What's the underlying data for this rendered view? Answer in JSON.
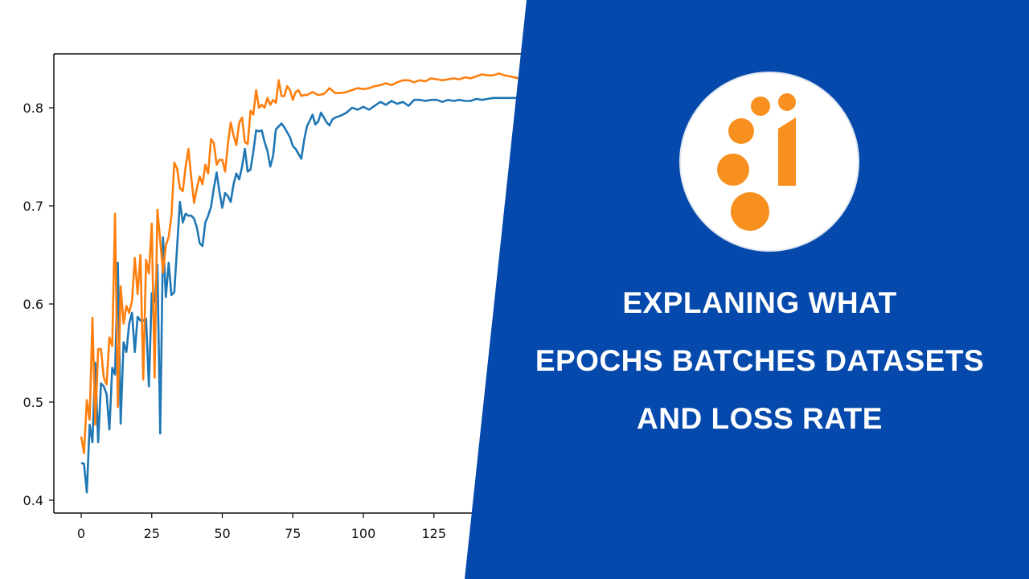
{
  "chart_data": {
    "type": "line",
    "title": "",
    "xlabel": "",
    "ylabel": "",
    "xlim": [
      -9,
      165
    ],
    "ylim": [
      0.388,
      0.855
    ],
    "grid": false,
    "legend": null,
    "x_ticks": [
      0,
      25,
      50,
      75,
      100,
      125
    ],
    "y_ticks": [
      0.4,
      0.5,
      0.6,
      0.7,
      0.8
    ],
    "x_tick_labels": [
      "0",
      "25",
      "50",
      "75",
      "100",
      "125"
    ],
    "y_tick_labels": [
      "0.4",
      "0.5",
      "0.6",
      "0.7",
      "0.8"
    ],
    "series": [
      {
        "name": "blue series",
        "color": "#1f77b4",
        "x": [
          0,
          1,
          2,
          3,
          4,
          5,
          6,
          7,
          8,
          9,
          10,
          11,
          12,
          13,
          14,
          15,
          16,
          17,
          18,
          19,
          20,
          21,
          22,
          23,
          24,
          25,
          26,
          27,
          28,
          29,
          30,
          31,
          32,
          33,
          34,
          35,
          36,
          37,
          38,
          39,
          40,
          41,
          42,
          43,
          44,
          45,
          46,
          47,
          48,
          49,
          50,
          51,
          52,
          53,
          54,
          55,
          56,
          57,
          58,
          59,
          60,
          61,
          62,
          63,
          64,
          65,
          66,
          67,
          68,
          69,
          70,
          71,
          72,
          73,
          74,
          75,
          76,
          77,
          78,
          79,
          80,
          81,
          82,
          83,
          84,
          85,
          86,
          87,
          88,
          89,
          90,
          92,
          94,
          96,
          98,
          100,
          102,
          104,
          106,
          108,
          110,
          112,
          114,
          116,
          118,
          120,
          122,
          124,
          126,
          128,
          130,
          132,
          134,
          136,
          138,
          140,
          142,
          144,
          146,
          148,
          150,
          152,
          155
        ],
        "values": [
          0.438,
          0.437,
          0.408,
          0.477,
          0.459,
          0.54,
          0.459,
          0.519,
          0.516,
          0.508,
          0.472,
          0.535,
          0.528,
          0.642,
          0.478,
          0.561,
          0.551,
          0.58,
          0.591,
          0.551,
          0.587,
          0.583,
          0.583,
          0.585,
          0.516,
          0.611,
          0.602,
          0.64,
          0.468,
          0.668,
          0.607,
          0.642,
          0.609,
          0.612,
          0.658,
          0.704,
          0.683,
          0.692,
          0.69,
          0.69,
          0.687,
          0.678,
          0.662,
          0.659,
          0.683,
          0.69,
          0.699,
          0.718,
          0.734,
          0.714,
          0.698,
          0.713,
          0.71,
          0.704,
          0.722,
          0.733,
          0.727,
          0.74,
          0.758,
          0.735,
          0.737,
          0.755,
          0.777,
          0.776,
          0.777,
          0.765,
          0.756,
          0.74,
          0.751,
          0.778,
          0.781,
          0.784,
          0.78,
          0.775,
          0.77,
          0.761,
          0.758,
          0.753,
          0.748,
          0.767,
          0.781,
          0.787,
          0.793,
          0.783,
          0.786,
          0.795,
          0.79,
          0.785,
          0.782,
          0.788,
          0.79,
          0.792,
          0.795,
          0.8,
          0.798,
          0.801,
          0.798,
          0.802,
          0.806,
          0.803,
          0.807,
          0.804,
          0.806,
          0.802,
          0.808,
          0.808,
          0.807,
          0.808,
          0.808,
          0.806,
          0.808,
          0.807,
          0.808,
          0.807,
          0.807,
          0.809,
          0.808,
          0.809,
          0.81,
          0.81,
          0.81,
          0.81,
          0.81
        ]
      },
      {
        "name": "orange series",
        "color": "#ff7f0e",
        "x": [
          0,
          1,
          2,
          3,
          4,
          5,
          6,
          7,
          8,
          9,
          10,
          11,
          12,
          13,
          14,
          15,
          16,
          17,
          18,
          19,
          20,
          21,
          22,
          23,
          24,
          25,
          26,
          27,
          28,
          29,
          30,
          31,
          32,
          33,
          34,
          35,
          36,
          37,
          38,
          39,
          40,
          41,
          42,
          43,
          44,
          45,
          46,
          47,
          48,
          49,
          50,
          51,
          52,
          53,
          54,
          55,
          56,
          57,
          58,
          59,
          60,
          61,
          62,
          63,
          64,
          65,
          66,
          67,
          68,
          69,
          70,
          71,
          72,
          73,
          74,
          75,
          76,
          77,
          78,
          79,
          80,
          82,
          84,
          86,
          88,
          90,
          92,
          94,
          96,
          98,
          100,
          102,
          104,
          106,
          108,
          110,
          112,
          114,
          116,
          118,
          120,
          122,
          124,
          126,
          128,
          130,
          132,
          134,
          136,
          138,
          140,
          142,
          144,
          146,
          148,
          150,
          152,
          155
        ],
        "values": [
          0.465,
          0.448,
          0.502,
          0.482,
          0.586,
          0.477,
          0.554,
          0.554,
          0.525,
          0.518,
          0.566,
          0.557,
          0.692,
          0.495,
          0.618,
          0.58,
          0.598,
          0.591,
          0.603,
          0.647,
          0.61,
          0.65,
          0.523,
          0.645,
          0.631,
          0.682,
          0.525,
          0.696,
          0.665,
          0.632,
          0.66,
          0.668,
          0.69,
          0.744,
          0.738,
          0.718,
          0.715,
          0.74,
          0.758,
          0.729,
          0.703,
          0.718,
          0.73,
          0.722,
          0.742,
          0.733,
          0.768,
          0.764,
          0.742,
          0.747,
          0.747,
          0.735,
          0.763,
          0.785,
          0.772,
          0.762,
          0.785,
          0.79,
          0.765,
          0.763,
          0.797,
          0.793,
          0.818,
          0.8,
          0.803,
          0.8,
          0.81,
          0.803,
          0.808,
          0.805,
          0.828,
          0.812,
          0.812,
          0.822,
          0.818,
          0.808,
          0.816,
          0.818,
          0.812,
          0.813,
          0.813,
          0.816,
          0.813,
          0.814,
          0.82,
          0.815,
          0.815,
          0.816,
          0.818,
          0.82,
          0.819,
          0.82,
          0.822,
          0.823,
          0.825,
          0.823,
          0.826,
          0.828,
          0.828,
          0.826,
          0.828,
          0.827,
          0.83,
          0.829,
          0.828,
          0.829,
          0.83,
          0.829,
          0.831,
          0.83,
          0.832,
          0.834,
          0.833,
          0.833,
          0.835,
          0.833,
          0.832,
          0.83
        ]
      }
    ]
  },
  "panel": {
    "background_color": "#0449ab",
    "title_lines": [
      "EXPLANING WHAT",
      "EPOCHS BATCHES DATASETS",
      "AND LOSS RATE"
    ],
    "title_color": "#ffffff"
  },
  "logo": {
    "name": "orange-dots-i-logo",
    "circle_color": "#ffffff",
    "shape_color": "#f7901e"
  }
}
